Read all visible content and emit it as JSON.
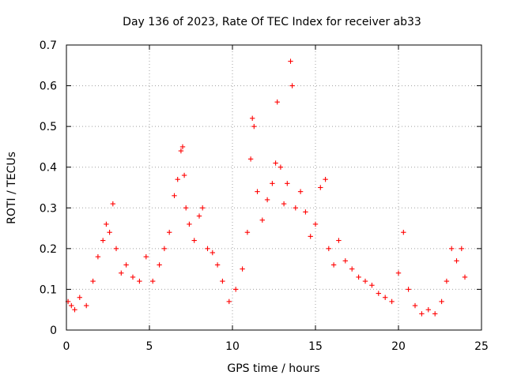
{
  "chart_data": {
    "type": "scatter",
    "title": "Day 136 of 2023, Rate Of TEC Index for receiver ab33",
    "xlabel": "GPS time / hours",
    "ylabel": "ROTI / TECUs",
    "xlim": [
      0,
      25
    ],
    "ylim": [
      0,
      0.7
    ],
    "x_ticks": [
      "0",
      "5",
      "10",
      "15",
      "20",
      "25"
    ],
    "y_ticks": [
      "0",
      "0.1",
      "0.2",
      "0.3",
      "0.4",
      "0.5",
      "0.6",
      "0.7"
    ],
    "grid": true,
    "marker": "plus",
    "color": "#ff0000",
    "series": [
      {
        "x": [
          0.1,
          0.3,
          0.5,
          0.8,
          1.2,
          1.6,
          1.9,
          2.2,
          2.4,
          2.6,
          2.8,
          3.0,
          3.3,
          3.6,
          4.0,
          4.4,
          4.8,
          5.2,
          5.6,
          5.9,
          6.2,
          6.5,
          6.7,
          6.9,
          7.0,
          7.1,
          7.2,
          7.4,
          7.7,
          8.0,
          8.2,
          8.5,
          8.8,
          9.1,
          9.4,
          9.8,
          10.2,
          10.6,
          10.9,
          11.1,
          11.2,
          11.3,
          11.5,
          11.8,
          12.1,
          12.4,
          12.6,
          12.7,
          12.9,
          13.1,
          13.3,
          13.5,
          13.6,
          13.8,
          14.1,
          14.4,
          14.7,
          15.0,
          15.3,
          15.6,
          15.8,
          16.1,
          16.4,
          16.8,
          17.2,
          17.6,
          18.0,
          18.4,
          18.8,
          19.2,
          19.6,
          20.0,
          20.3,
          20.6,
          21.0,
          21.4,
          21.8,
          22.2,
          22.6,
          22.9,
          23.2,
          23.5,
          23.8,
          24.0
        ],
        "y": [
          0.07,
          0.06,
          0.05,
          0.08,
          0.06,
          0.12,
          0.18,
          0.22,
          0.26,
          0.24,
          0.31,
          0.2,
          0.14,
          0.16,
          0.13,
          0.12,
          0.18,
          0.12,
          0.16,
          0.2,
          0.24,
          0.33,
          0.37,
          0.44,
          0.45,
          0.38,
          0.3,
          0.26,
          0.22,
          0.28,
          0.3,
          0.2,
          0.19,
          0.16,
          0.12,
          0.07,
          0.1,
          0.15,
          0.24,
          0.42,
          0.52,
          0.5,
          0.34,
          0.27,
          0.32,
          0.36,
          0.41,
          0.56,
          0.4,
          0.31,
          0.36,
          0.66,
          0.6,
          0.3,
          0.34,
          0.29,
          0.23,
          0.26,
          0.35,
          0.37,
          0.2,
          0.16,
          0.22,
          0.17,
          0.15,
          0.13,
          0.12,
          0.11,
          0.09,
          0.08,
          0.07,
          0.14,
          0.24,
          0.1,
          0.06,
          0.04,
          0.05,
          0.04,
          0.07,
          0.12,
          0.2,
          0.17,
          0.2,
          0.13
        ]
      }
    ]
  }
}
